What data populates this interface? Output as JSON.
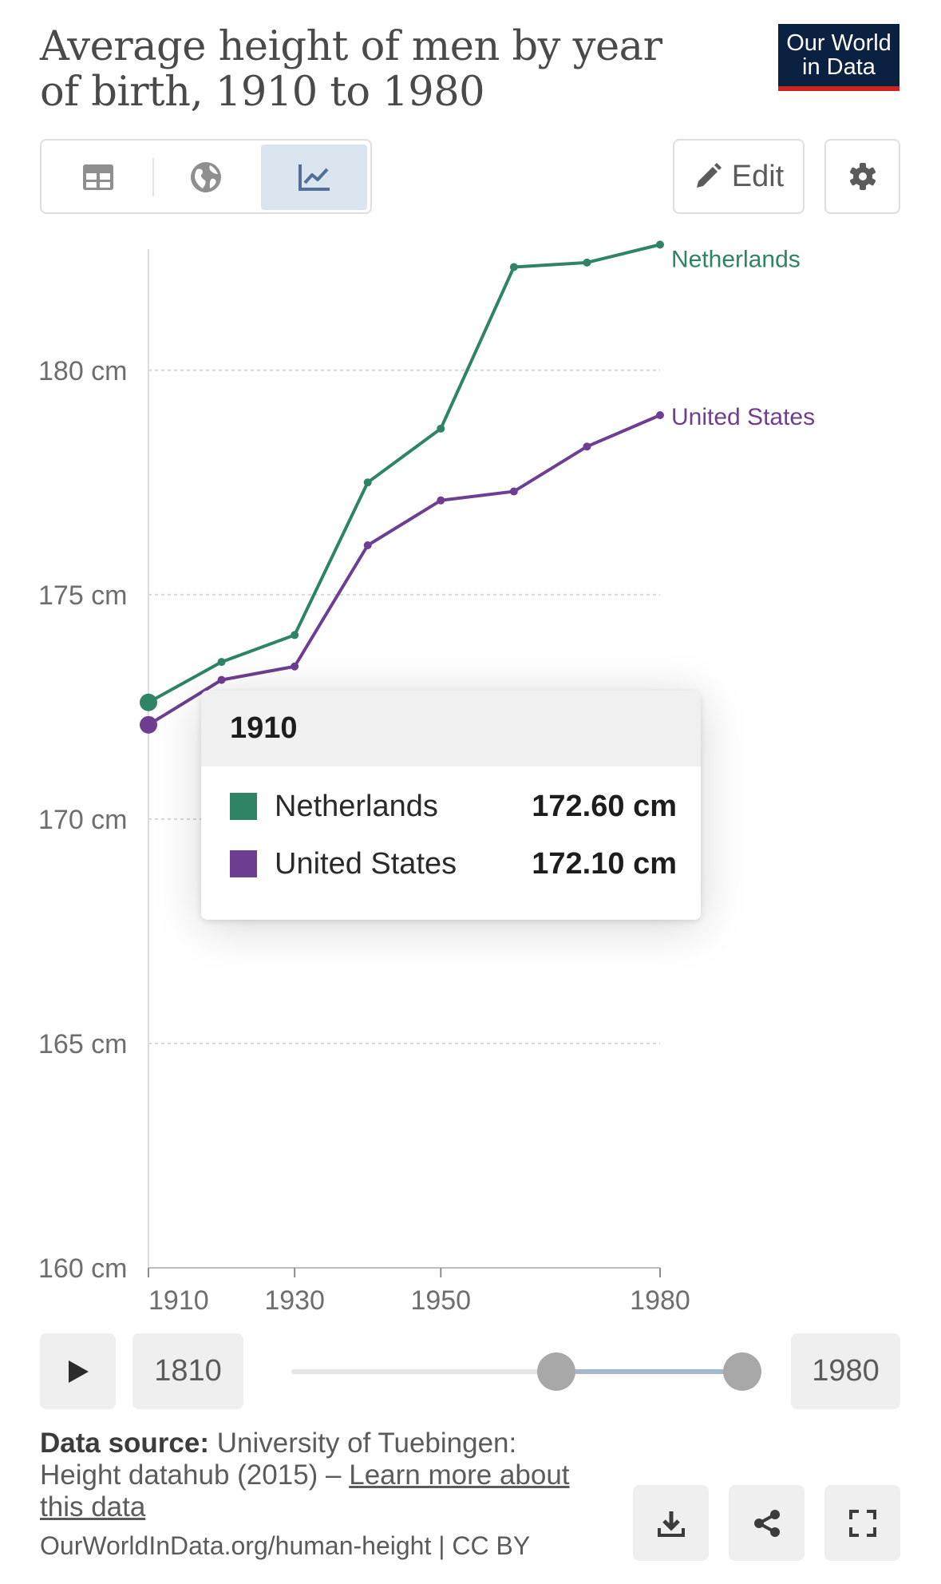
{
  "header": {
    "title": "Average height of men by year of birth, 1910 to 1980",
    "logo_line1": "Our World",
    "logo_line2": "in Data"
  },
  "tabs": [
    {
      "label": "table",
      "icon": "table-icon",
      "active": false
    },
    {
      "label": "map",
      "icon": "globe-icon",
      "active": false
    },
    {
      "label": "chart",
      "icon": "line-chart-icon",
      "active": true
    }
  ],
  "toolbar": {
    "edit_label": "Edit",
    "settings_icon": "gear-icon"
  },
  "chart_data": {
    "type": "line",
    "title": "Average height of men by year of birth, 1910 to 1980",
    "xlabel": "",
    "ylabel": "",
    "x": [
      1910,
      1920,
      1930,
      1940,
      1950,
      1960,
      1970,
      1980
    ],
    "x_ticks": [
      "1910",
      "1930",
      "1950",
      "1980"
    ],
    "y_ticks": [
      "160 cm",
      "165 cm",
      "170 cm",
      "175 cm",
      "180 cm"
    ],
    "ylim": [
      160,
      182.7
    ],
    "xlim": [
      1910,
      1980
    ],
    "grid": true,
    "series": [
      {
        "name": "Netherlands",
        "color": "#2e8465",
        "values": [
          172.6,
          173.5,
          174.1,
          177.5,
          178.7,
          182.3,
          182.4,
          182.8
        ]
      },
      {
        "name": "United States",
        "color": "#6d3e91",
        "values": [
          172.1,
          173.1,
          173.4,
          176.1,
          177.1,
          177.3,
          178.3,
          179.0
        ]
      }
    ]
  },
  "tooltip": {
    "year": "1910",
    "rows": [
      {
        "name": "Netherlands",
        "value": "172.60 cm",
        "color": "#2e8465"
      },
      {
        "name": "United States",
        "value": "172.10 cm",
        "color": "#6d3e91"
      }
    ]
  },
  "timeline": {
    "start_year": "1810",
    "end_year": "1980",
    "play_icon": "play-icon"
  },
  "footer": {
    "source_label": "Data source:",
    "source_text": "University of Tuebingen: Height datahub (2015) – ",
    "learn_more": "Learn more about this data",
    "url": "OurWorldInData.org/human-height | CC BY",
    "download_icon": "download-icon",
    "share_icon": "share-icon",
    "fullscreen_icon": "fullscreen-icon"
  }
}
